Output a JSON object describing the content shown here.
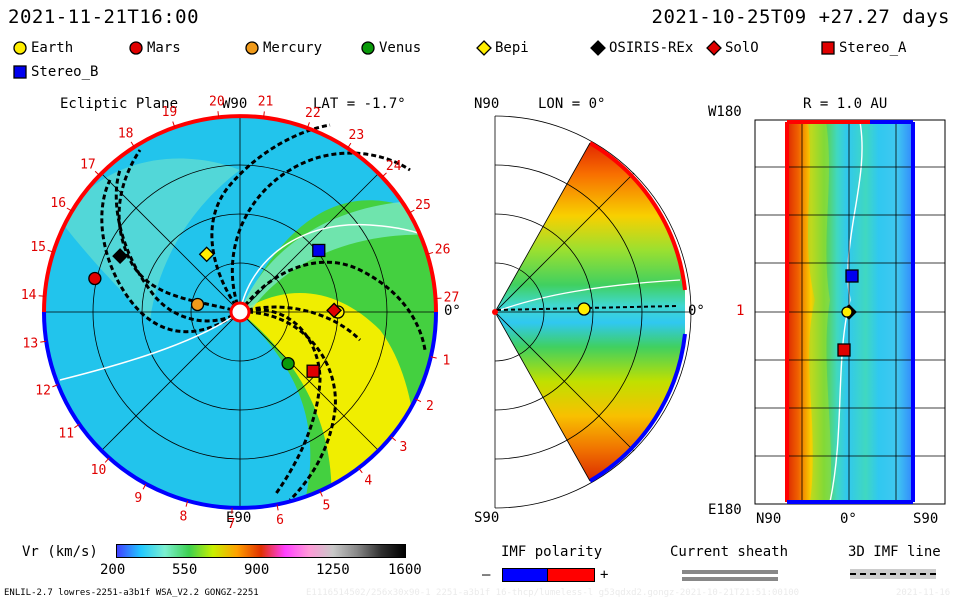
{
  "header": {
    "left_time": "2021-11-21T16:00",
    "right_time": "2021-10-25T09  +27.27 days"
  },
  "legend": [
    {
      "name": "Earth",
      "color": "#ffee00",
      "shape": "circle"
    },
    {
      "name": "Mars",
      "color": "#e00000",
      "shape": "circle"
    },
    {
      "name": "Mercury",
      "color": "#f09a1a",
      "shape": "circle"
    },
    {
      "name": "Venus",
      "color": "#0a9a0a",
      "shape": "circle"
    },
    {
      "name": "Bepi",
      "color": "#ffee00",
      "shape": "diamond"
    },
    {
      "name": "OSIRIS-REx",
      "color": "#000000",
      "shape": "diamond"
    },
    {
      "name": "SolO",
      "color": "#e00000",
      "shape": "diamond"
    },
    {
      "name": "Stereo_A",
      "color": "#e00000",
      "shape": "square"
    },
    {
      "name": "Stereo_B",
      "color": "#0000ee",
      "shape": "square"
    }
  ],
  "panels": {
    "ecliptic": {
      "title": "Ecliptic Plane",
      "top_label": "W90",
      "lat_label": "LAT = -1.7°",
      "bottom_label": "E90",
      "right_label": "0°",
      "carrington": [
        "1",
        "2",
        "3",
        "4",
        "5",
        "6",
        "7",
        "8",
        "9",
        "10",
        "11",
        "12",
        "13",
        "14",
        "15",
        "16",
        "17",
        "18",
        "19",
        "20",
        "21",
        "22",
        "23",
        "24",
        "25",
        "26",
        "27"
      ]
    },
    "meridional": {
      "top_label": "N90",
      "lon_label": "LON = 0°",
      "bottom_label": "S90",
      "right_label": "0°"
    },
    "latlon": {
      "r_label": "R = 1.0 AU",
      "top_left_label": "W180",
      "mid_left_label": "1",
      "bottom_left_label": "E180",
      "x_left_label": "N90",
      "x_mid_label": "0°",
      "x_right_label": "S90"
    }
  },
  "colorbar": {
    "label": "Vr (km/s)",
    "ticks": [
      "200",
      "550",
      "900",
      "1250",
      "1600"
    ],
    "colors": [
      "#4040ff",
      "#22c8ff",
      "#7cf0d0",
      "#3cd050",
      "#c8f000",
      "#ffa000",
      "#e03000",
      "#ff40ff",
      "#ff9ad8",
      "#c8c8c8",
      "#888888",
      "#303030",
      "#000000"
    ]
  },
  "imf": {
    "title": "IMF polarity",
    "minus": "–",
    "plus": "+",
    "neg_color": "#0000ff",
    "pos_color": "#ff0000"
  },
  "current_sheath": {
    "title": "Current sheath"
  },
  "imf_line": {
    "title": "3D IMF line"
  },
  "footer": {
    "left": "ENLIL-2.7 lowres-2251-a3b1f WSA_V2.2 GONGZ-2251",
    "mid": "E1116514502/256x30x90-1 2251-a3b1f 16-thcp/lumeless-l g53qdxd2.gongz-2021-10-21T21:51:00100",
    "right": "2021-11-16"
  },
  "chart_data": [
    {
      "type": "heatmap",
      "title": "Ecliptic Plane",
      "description_value_name": "Vr (km/s)",
      "value_range": [
        200,
        1600
      ],
      "bodies": [
        {
          "name": "Earth",
          "angle_deg": 0,
          "r_au": 1.0
        },
        {
          "name": "Mars",
          "angle_deg": 167,
          "r_au": 1.52
        },
        {
          "name": "Mercury",
          "angle_deg": 170,
          "r_au": 0.44
        },
        {
          "name": "Venus",
          "angle_deg": -47,
          "r_au": 0.72
        },
        {
          "name": "Bepi",
          "angle_deg": 120,
          "r_au": 0.68
        },
        {
          "name": "OSIRIS-REx",
          "angle_deg": 155,
          "r_au": 1.35
        },
        {
          "name": "SolO",
          "angle_deg": 1,
          "r_au": 0.96
        },
        {
          "name": "Stereo_A",
          "angle_deg": -39,
          "r_au": 0.96
        },
        {
          "name": "Stereo_B",
          "angle_deg": 38,
          "r_au": 1.02
        }
      ]
    },
    {
      "type": "heatmap",
      "title": "LON = 0°",
      "latitude_range": [
        "N90",
        "S90"
      ]
    },
    {
      "type": "heatmap",
      "title": "R = 1.0 AU",
      "x_range": [
        "N90",
        "S90"
      ],
      "y_range": [
        "W180",
        "E180"
      ]
    }
  ]
}
